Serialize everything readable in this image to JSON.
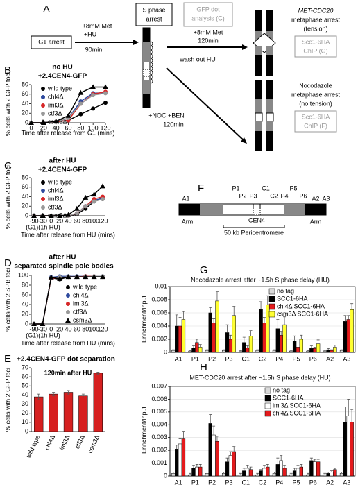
{
  "diagram_a": {
    "label": "A",
    "g1": "G1 arrest",
    "step1": [
      "+8mM Met",
      "+HU"
    ],
    "step1_time": "90min",
    "s_phase": [
      "S phase",
      "arrest"
    ],
    "gfp": [
      "GFP dot",
      "analysis (C)"
    ],
    "met_step": "+8mM Met",
    "met_time": "120min",
    "wash": "wash out HU",
    "noc_step": "+NOC +BEN",
    "noc_time": "120min",
    "met_arrest": [
      "MET-CDC20",
      "metaphase arrest",
      "(tension)"
    ],
    "met_chip": [
      "Scc1-6HA",
      "ChIP (G)"
    ],
    "noc_arrest": [
      "Nocodazole",
      "metaphase arrest",
      "(no tension)"
    ],
    "noc_chip": [
      "Scc1-6HA",
      "ChIP (F)"
    ]
  },
  "diagram_f": {
    "label": "F",
    "sites": [
      "A1",
      "P1",
      "P2",
      "P3",
      "C1",
      "C2",
      "P4",
      "P5",
      "P6",
      "A2",
      "A3"
    ],
    "arms": [
      "Arm",
      "Arm"
    ],
    "cen": "CEN4",
    "peri": "50 kb Pericentromere"
  },
  "chart_data": [
    {
      "type": "line",
      "panel": "B",
      "title": "no HU",
      "subtitle": "+2.4CEN4-GFP",
      "x_label": "Time after release from G1 (mins)",
      "y_label": "% cells with 2 GFP foci",
      "x": [
        0,
        20,
        40,
        60,
        80,
        100,
        120
      ],
      "xlim": [
        0,
        120
      ],
      "xticks": [
        0,
        20,
        40,
        60,
        80,
        100,
        120
      ],
      "ylim": [
        0,
        80
      ],
      "yticks": [
        0,
        20,
        40,
        60,
        80
      ],
      "series": [
        {
          "name": "wild type",
          "color": "#000000",
          "marker": "circle",
          "values": [
            0,
            0,
            2,
            5,
            18,
            30,
            42
          ]
        },
        {
          "name": "chl4Δ",
          "color": "#2e4a9e",
          "marker": "circle",
          "values": [
            0,
            0,
            2,
            10,
            45,
            62,
            63
          ]
        },
        {
          "name": "iml3Δ",
          "color": "#d62728",
          "marker": "circle",
          "values": [
            0,
            0,
            2,
            5,
            40,
            60,
            65
          ]
        },
        {
          "name": "ctf3Δ",
          "color": "#999999",
          "marker": "circle",
          "values": [
            0,
            0,
            2,
            10,
            40,
            58,
            62
          ]
        },
        {
          "name": "csm3Δ",
          "color": "#000000",
          "marker": "triangle",
          "values": [
            0,
            0,
            3,
            15,
            63,
            75,
            75
          ]
        }
      ]
    },
    {
      "type": "line",
      "panel": "C",
      "title": "after HU",
      "subtitle": "+2.4CEN4-GFP",
      "annotation": "(G1)(1h HU)",
      "x_label": "Time after release from HU (mins)",
      "y_label": "% cells with 2 GFP foci",
      "categories": [
        "-90",
        "-30",
        "0",
        "20",
        "40",
        "60",
        "80",
        "100",
        "120"
      ],
      "ylim": [
        0,
        80
      ],
      "yticks": [
        0,
        20,
        40,
        60,
        80
      ],
      "series": [
        {
          "name": "wild type",
          "color": "#000000",
          "marker": "circle",
          "values": [
            0,
            0,
            0,
            0,
            0,
            3,
            15,
            30,
            35
          ]
        },
        {
          "name": "chl4Δ",
          "color": "#2e4a9e",
          "marker": "circle",
          "values": [
            0,
            0,
            0,
            0,
            0,
            5,
            20,
            32,
            37
          ]
        },
        {
          "name": "iml3Δ",
          "color": "#d62728",
          "marker": "circle",
          "values": [
            0,
            0,
            0,
            0,
            0,
            5,
            20,
            35,
            40
          ]
        },
        {
          "name": "ctf3Δ",
          "color": "#999999",
          "marker": "circle",
          "values": [
            0,
            0,
            0,
            0,
            0,
            5,
            20,
            30,
            35
          ]
        },
        {
          "name": "csm3Δ",
          "color": "#000000",
          "marker": "triangle",
          "values": [
            0,
            0,
            0,
            0,
            2,
            15,
            38,
            45,
            62
          ]
        }
      ]
    },
    {
      "type": "line",
      "panel": "D",
      "title": "after HU",
      "subtitle": "separated spindle pole bodies",
      "annotation": "(G1)(1h HU)",
      "x_label": "Time after release from HU (mins)",
      "y_label": "% cells with 2 SPB foci",
      "categories": [
        "-90",
        "-30",
        "0",
        "20",
        "40",
        "60",
        "80",
        "100",
        "120"
      ],
      "ylim": [
        0,
        100
      ],
      "yticks": [
        0,
        20,
        40,
        60,
        80,
        100
      ],
      "series": [
        {
          "name": "wild type",
          "color": "#000000",
          "marker": "circle",
          "values": [
            0,
            0,
            95,
            92,
            97,
            97,
            97,
            97,
            97
          ]
        },
        {
          "name": "chl4Δ",
          "color": "#2e4a9e",
          "marker": "circle",
          "values": [
            0,
            0,
            96,
            98,
            98,
            98,
            98,
            98,
            98
          ]
        },
        {
          "name": "iml3Δ",
          "color": "#d62728",
          "marker": "circle",
          "values": [
            0,
            0,
            94,
            95,
            97,
            97,
            98,
            98,
            97
          ]
        },
        {
          "name": "ctf3Δ",
          "color": "#999999",
          "marker": "circle",
          "values": [
            0,
            0,
            95,
            96,
            97,
            97,
            97,
            98,
            98
          ]
        },
        {
          "name": "csm3Δ",
          "color": "#000000",
          "marker": "triangle",
          "values": [
            0,
            0,
            96,
            93,
            97,
            97,
            97,
            97,
            97
          ]
        }
      ]
    },
    {
      "type": "bar",
      "panel": "E",
      "title": "+2.4CEN4-GFP dot separation",
      "annotation": "120min after HU",
      "y_label": "% cells with 2 GFP foci",
      "categories": [
        "wild type",
        "chl4Δ",
        "iml3Δ",
        "ctf3Δ",
        "csm3Δ"
      ],
      "values": [
        38,
        41,
        43,
        39,
        64
      ],
      "errors": [
        3,
        2,
        2,
        2,
        1
      ],
      "color": "#d62020",
      "ylim": [
        0,
        70
      ],
      "yticks": [
        0,
        10,
        20,
        30,
        40,
        50,
        60,
        70
      ]
    },
    {
      "type": "bar",
      "panel": "G",
      "title": "Nocodazole arrest after ~1.5h S phase delay (HU)",
      "y_label": "Enrichment/Input",
      "grid": true,
      "categories": [
        "A1",
        "P1",
        "P2",
        "P3",
        "C1",
        "C2",
        "P4",
        "P5",
        "P6",
        "A2",
        "A3"
      ],
      "ylim": [
        0,
        0.01
      ],
      "yticks": [
        0,
        0.002,
        0.004,
        0.006,
        0.008,
        0.01
      ],
      "series": [
        {
          "name": "no tag",
          "color": "#d9d9d9",
          "values": [
            0.0003,
            0.0002,
            0.0003,
            0.0003,
            0.0002,
            0.0003,
            0.0003,
            0.0002,
            0.0002,
            0.0002,
            0.0003
          ],
          "errors": [
            0.0001,
            0.0001,
            0.0001,
            0.0001,
            0.0001,
            0.0001,
            0.0001,
            0.0001,
            0.0001,
            0.0001,
            0.0001
          ]
        },
        {
          "name": "SCC1-6HA",
          "color": "#000000",
          "values": [
            0.004,
            0.0007,
            0.006,
            0.003,
            0.0015,
            0.0065,
            0.0036,
            0.0017,
            0.0006,
            0.0004,
            0.0047
          ],
          "errors": [
            0.0017,
            0.0003,
            0.0008,
            0.0012,
            0.0008,
            0.0012,
            0.0014,
            0.0008,
            0.0004,
            0.0002,
            0.0009
          ]
        },
        {
          "name": "chl4Δ SCC1-6HA",
          "color": "#e41a1c",
          "values": [
            0.004,
            0.0015,
            0.0045,
            0.002,
            0.0007,
            0.0045,
            0.0026,
            0.0008,
            0.0006,
            0.0003,
            0.005
          ],
          "errors": [
            0.0013,
            0.0005,
            0.0006,
            0.0006,
            0.0003,
            0.0008,
            0.0006,
            0.0003,
            0.0002,
            0.0001,
            0.0006
          ]
        },
        {
          "name": "csm3Δ SCC1-6HA",
          "color": "#ffff33",
          "values": [
            0.005,
            0.0008,
            0.0078,
            0.0056,
            0.0025,
            0.0072,
            0.0042,
            0.002,
            0.0013,
            0.0008,
            0.0065
          ],
          "errors": [
            0.0012,
            0.0004,
            0.0014,
            0.0014,
            0.0008,
            0.0014,
            0.0012,
            0.0006,
            0.0006,
            0.0003,
            0.0009
          ]
        }
      ]
    },
    {
      "type": "bar",
      "panel": "H",
      "title": "MET-CDC20 arrest after ~1.5h S phase delay (HU)",
      "y_label": "Enrichment/Input",
      "grid": true,
      "categories": [
        "A1",
        "P1",
        "P2",
        "P3",
        "C1",
        "C2",
        "P4",
        "P5",
        "P6",
        "A2",
        "A3"
      ],
      "ylim": [
        0,
        0.007
      ],
      "yticks": [
        0,
        0.001,
        0.002,
        0.003,
        0.004,
        0.005,
        0.006,
        0.007
      ],
      "series": [
        {
          "name": "no tag",
          "color": "#d9d9d9",
          "values": [
            0.0002,
            0.0001,
            0.0002,
            0.0002,
            0.0001,
            0.0001,
            0.0002,
            0.0001,
            0.0001,
            0.0001,
            0.0002
          ],
          "errors": [
            0.0001,
            0.0001,
            0.0001,
            0.0001,
            0.0001,
            0.0001,
            0.0001,
            0.0001,
            0.0001,
            0.0001,
            0.0001
          ]
        },
        {
          "name": "SCC1-6HA",
          "color": "#000000",
          "values": [
            0.0021,
            0.0006,
            0.0041,
            0.0011,
            0.0004,
            0.0004,
            0.0009,
            0.0004,
            0.0012,
            0.0002,
            0.0042
          ],
          "errors": [
            0.0003,
            0.0002,
            0.0007,
            0.0003,
            0.0002,
            0.0001,
            0.0005,
            0.0002,
            0.0002,
            0.0001,
            0.0012
          ]
        },
        {
          "name": "iml3Δ SCC1-6HA",
          "color": "#ffffff",
          "values": [
            0.0025,
            0.0007,
            0.0032,
            0.0016,
            0.0006,
            0.0006,
            0.0012,
            0.0006,
            0.0011,
            0.0003,
            0.0047
          ],
          "errors": [
            0.0004,
            0.0002,
            0.0007,
            0.0003,
            0.0002,
            0.0002,
            0.0004,
            0.0002,
            0.0002,
            0.0001,
            0.0013
          ]
        },
        {
          "name": "chl4Δ SCC1-6HA",
          "color": "#e41a1c",
          "values": [
            0.0029,
            0.0007,
            0.0027,
            0.0019,
            0.0005,
            0.0007,
            0.0006,
            0.0007,
            0.0011,
            0.0005,
            0.0042
          ],
          "errors": [
            0.0006,
            0.0002,
            0.0004,
            0.0004,
            0.0002,
            0.0002,
            0.0002,
            0.0002,
            0.0002,
            0.0001,
            0.001
          ]
        }
      ]
    }
  ]
}
